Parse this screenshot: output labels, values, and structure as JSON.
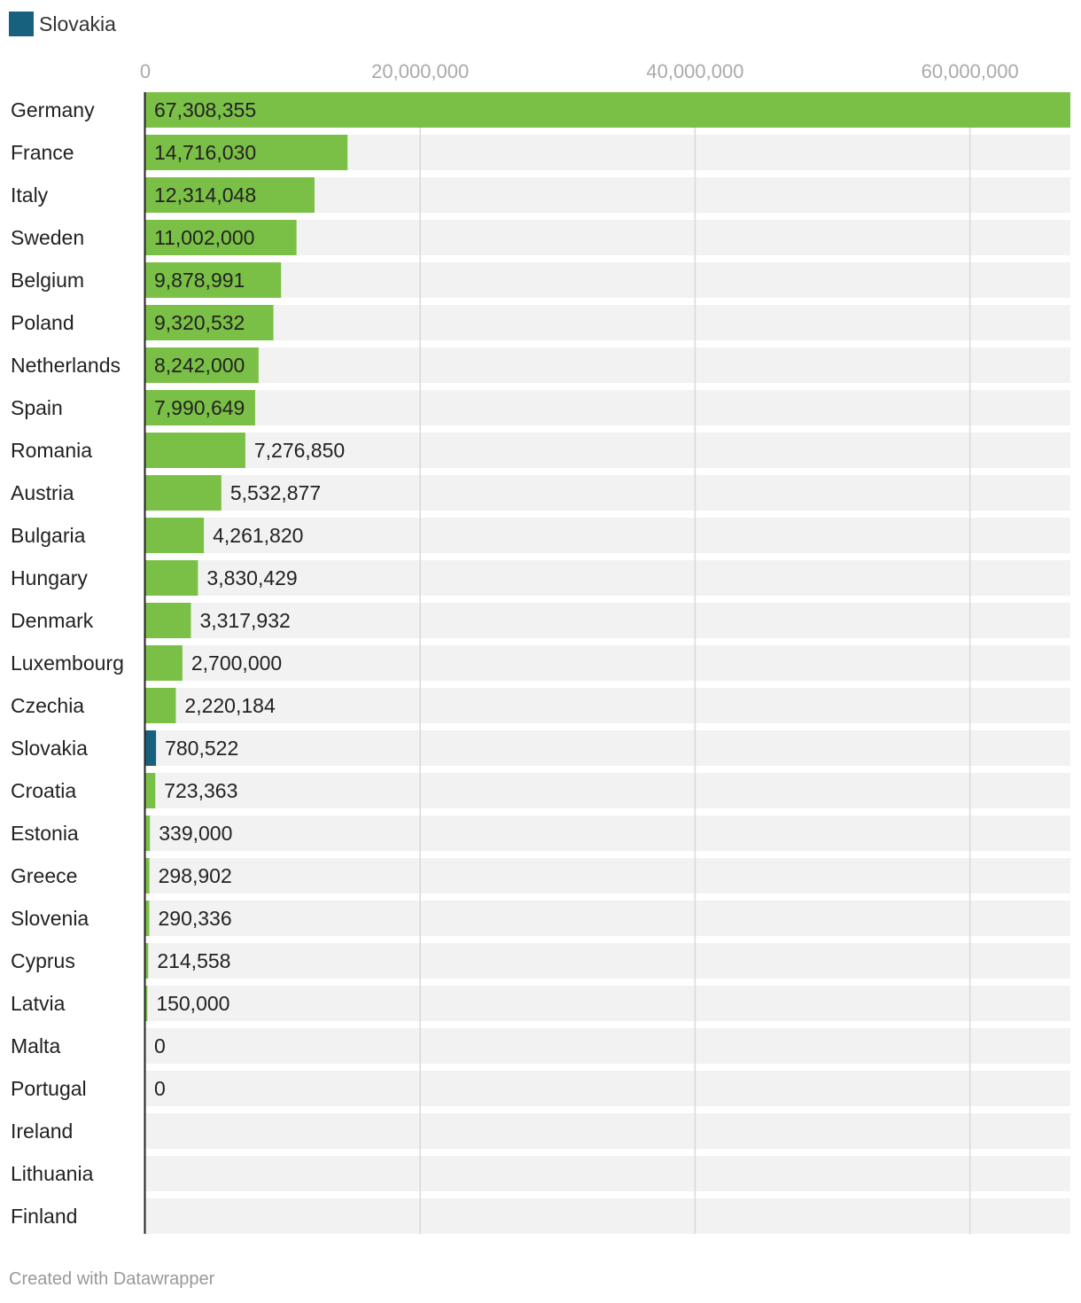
{
  "colors": {
    "default_bar": "#7bc046",
    "highlight_bar": "#17607e",
    "row_background": "#f2f2f2",
    "gridline": "#d9d9d9",
    "axis_line": "#222222"
  },
  "chart_data": {
    "type": "bar",
    "orientation": "horizontal",
    "legend": [
      {
        "name": "Slovakia",
        "color": "#17607e"
      }
    ],
    "xlim": [
      0,
      67308355
    ],
    "x_ticks": [
      {
        "value": 0,
        "label": "0"
      },
      {
        "value": 20000000,
        "label": "20,000,000"
      },
      {
        "value": 40000000,
        "label": "40,000,000"
      },
      {
        "value": 60000000,
        "label": "60,000,000"
      }
    ],
    "grid": true,
    "categories": [
      "Germany",
      "France",
      "Italy",
      "Sweden",
      "Belgium",
      "Poland",
      "Netherlands",
      "Spain",
      "Romania",
      "Austria",
      "Bulgaria",
      "Hungary",
      "Denmark",
      "Luxembourg",
      "Czechia",
      "Slovakia",
      "Croatia",
      "Estonia",
      "Greece",
      "Slovenia",
      "Cyprus",
      "Latvia",
      "Malta",
      "Portugal",
      "Ireland",
      "Lithuania",
      "Finland"
    ],
    "values": [
      67308355,
      14716030,
      12314048,
      11002000,
      9878991,
      9320532,
      8242000,
      7990649,
      7276850,
      5532877,
      4261820,
      3830429,
      3317932,
      2700000,
      2220184,
      780522,
      723363,
      339000,
      298902,
      290336,
      214558,
      150000,
      0,
      0,
      null,
      null,
      null
    ],
    "value_labels": [
      "67,308,355",
      "14,716,030",
      "12,314,048",
      "11,002,000",
      "9,878,991",
      "9,320,532",
      "8,242,000",
      "7,990,649",
      "7,276,850",
      "5,532,877",
      "4,261,820",
      "3,830,429",
      "3,317,932",
      "2,700,000",
      "2,220,184",
      "780,522",
      "723,363",
      "339,000",
      "298,902",
      "290,336",
      "214,558",
      "150,000",
      "0",
      "0",
      "",
      "",
      ""
    ],
    "highlight": "Slovakia"
  },
  "footer": {
    "credit": "Created with Datawrapper"
  }
}
